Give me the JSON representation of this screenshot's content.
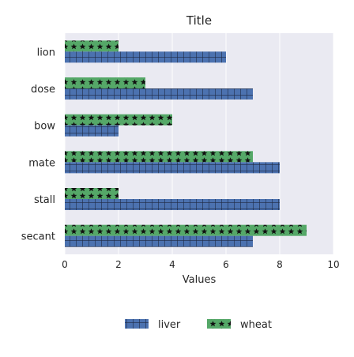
{
  "chart_data": {
    "type": "bar",
    "orientation": "horizontal",
    "title": "Title",
    "xlabel": "Values",
    "ylabel": "",
    "xlim": [
      0,
      10
    ],
    "xticks": [
      0,
      2,
      4,
      6,
      8,
      10
    ],
    "grid": true,
    "legend_position": "bottom",
    "categories": [
      "lion",
      "dose",
      "bow",
      "mate",
      "stall",
      "secant"
    ],
    "series": [
      {
        "name": "liver",
        "values": [
          6,
          7,
          2,
          8,
          8,
          7
        ],
        "color": "#4c72b0",
        "pattern": "grid"
      },
      {
        "name": "wheat",
        "values": [
          2,
          3,
          4,
          7,
          2,
          9
        ],
        "color": "#55a868",
        "pattern": "stars"
      }
    ]
  },
  "colors": {
    "plot_background": "#eaeaf2",
    "grid": "#ffffff"
  }
}
